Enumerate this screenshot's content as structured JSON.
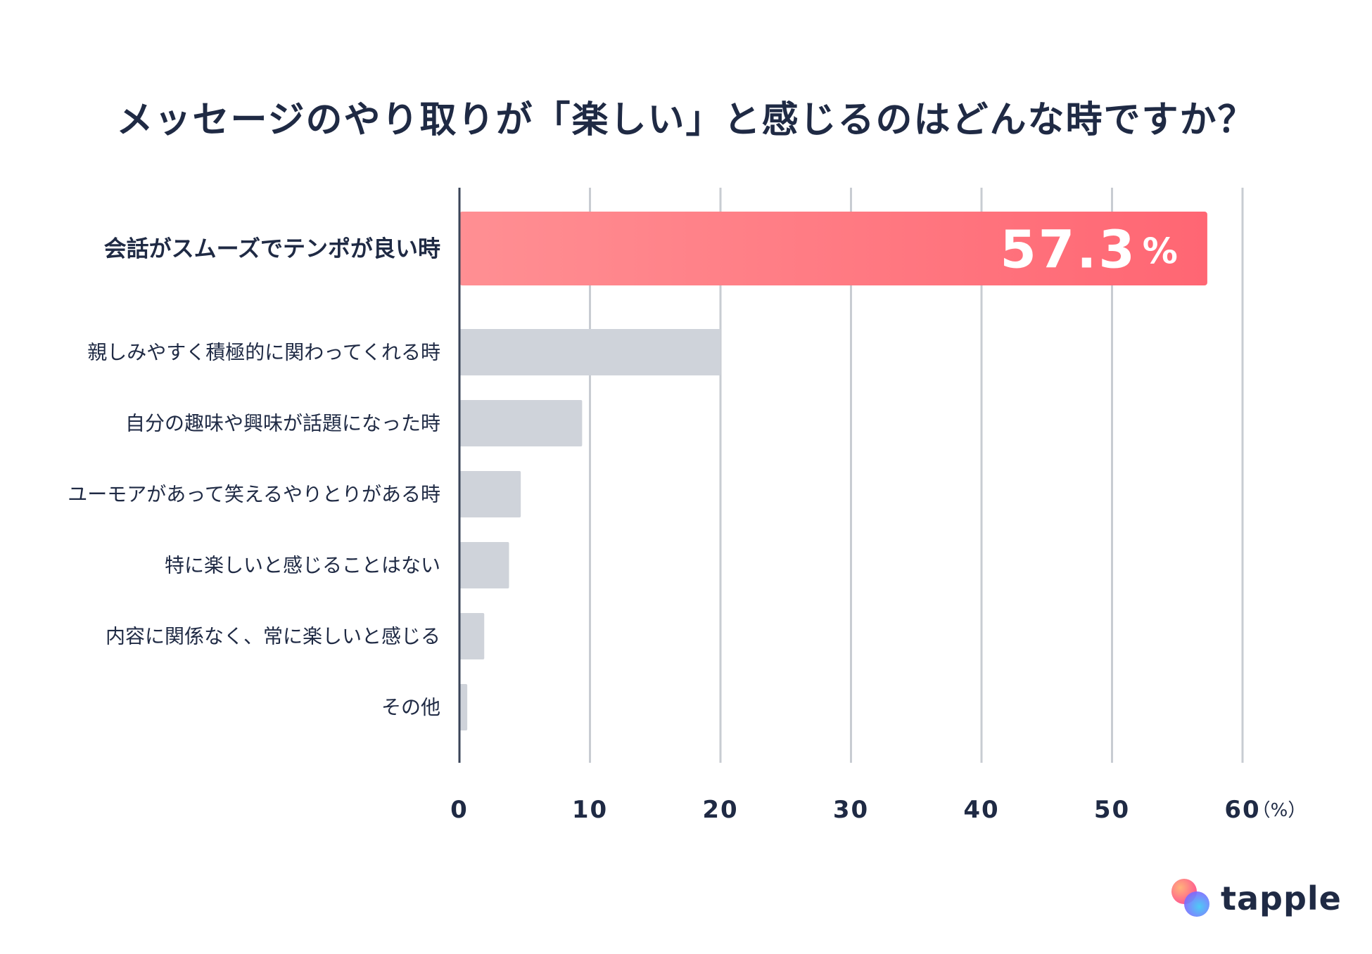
{
  "title": "メッセージのやり取りが「楽しい」と感じるのはどんな時ですか？",
  "brand": {
    "name": "tapple"
  },
  "colors": {
    "highlight_start": "#ff8f93",
    "highlight_end": "#ff6673",
    "bar": "#cfd3da",
    "grid": "#c8ccd2",
    "axis": "#3a4458",
    "text": "#1f2a44"
  },
  "chart_data": {
    "type": "bar",
    "orientation": "horizontal",
    "categories": [
      "会話がスムーズでテンポが良い時",
      "親しみやすく積極的に関わってくれる時",
      "自分の趣味や興味が話題になった時",
      "ユーモアがあって笑えるやりとりがある時",
      "特に楽しいと感じることはない",
      "内容に関係なく、常に楽しいと感じる",
      "その他"
    ],
    "values": [
      57.3,
      20.0,
      9.4,
      4.7,
      3.8,
      1.9,
      0.6
    ],
    "highlight_index": 0,
    "highlight_label": "57.3",
    "highlight_unit": "%",
    "xlim": [
      0,
      60
    ],
    "xticks": [
      "0",
      "10",
      "20",
      "30",
      "40",
      "50",
      "60"
    ],
    "unit_label": "（%）",
    "grid": true
  }
}
